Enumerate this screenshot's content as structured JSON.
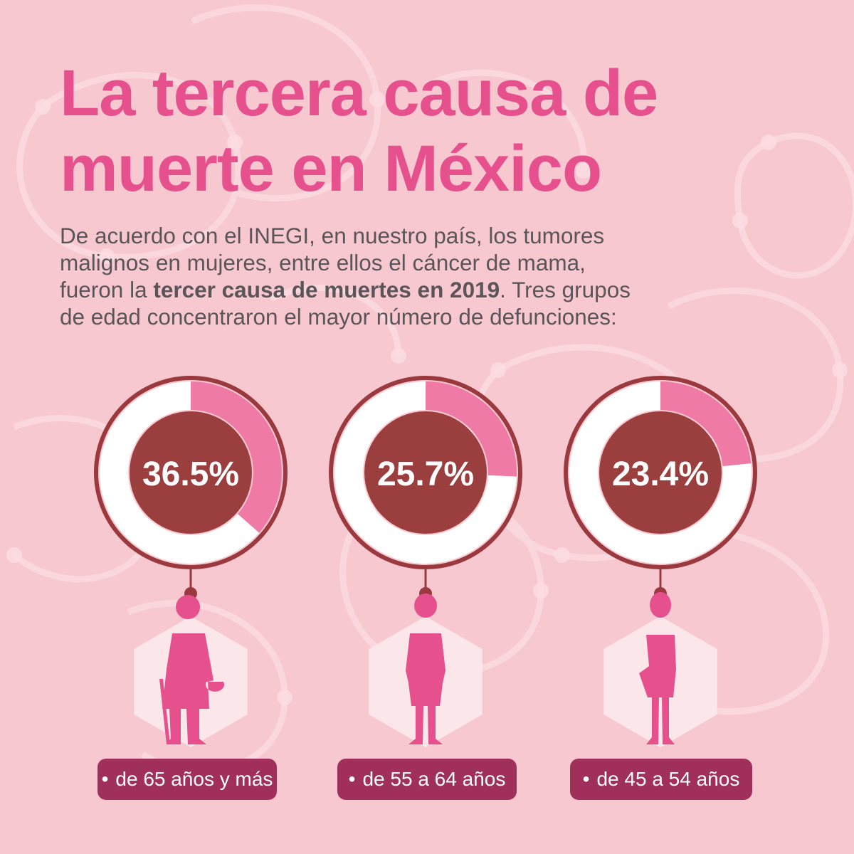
{
  "title": {
    "line1": "La tercera causa de",
    "line2": "muerte en México"
  },
  "intro": {
    "line1": "De acuerdo con el INEGI, en nuestro país, los tumores",
    "line2": "malignos en mujeres, entre ellos el cáncer de mama,",
    "line3_before": "fueron la ",
    "line3_bold": "tercer causa de muertes en 2019",
    "line3_after": ". Tres grupos",
    "line4": "de edad concentraron el mayor número de defunciones:"
  },
  "colors": {
    "background": "#f8c8d0",
    "title": "#e6518d",
    "ring_fill": "#ef7aa6",
    "ring_rest": "#ffffff",
    "ring_outline": "#9a3a3e",
    "center": "#9b3e3e",
    "figure": "#e6518d",
    "hexagon": "#fbe7ea",
    "label_bg": "#a02f5c"
  },
  "icons": [
    "elderly-woman-with-cane-icon",
    "adult-woman-icon",
    "middle-aged-woman-icon"
  ],
  "chart_data": {
    "type": "pie",
    "values": [
      36.5,
      25.7,
      23.4
    ],
    "value_labels": [
      "36.5%",
      "25.7%",
      "23.4%"
    ],
    "categories": [
      "de 65 años y más",
      "de 55 a 64 años",
      "de  45 a 54 años"
    ],
    "bullet": "•"
  }
}
